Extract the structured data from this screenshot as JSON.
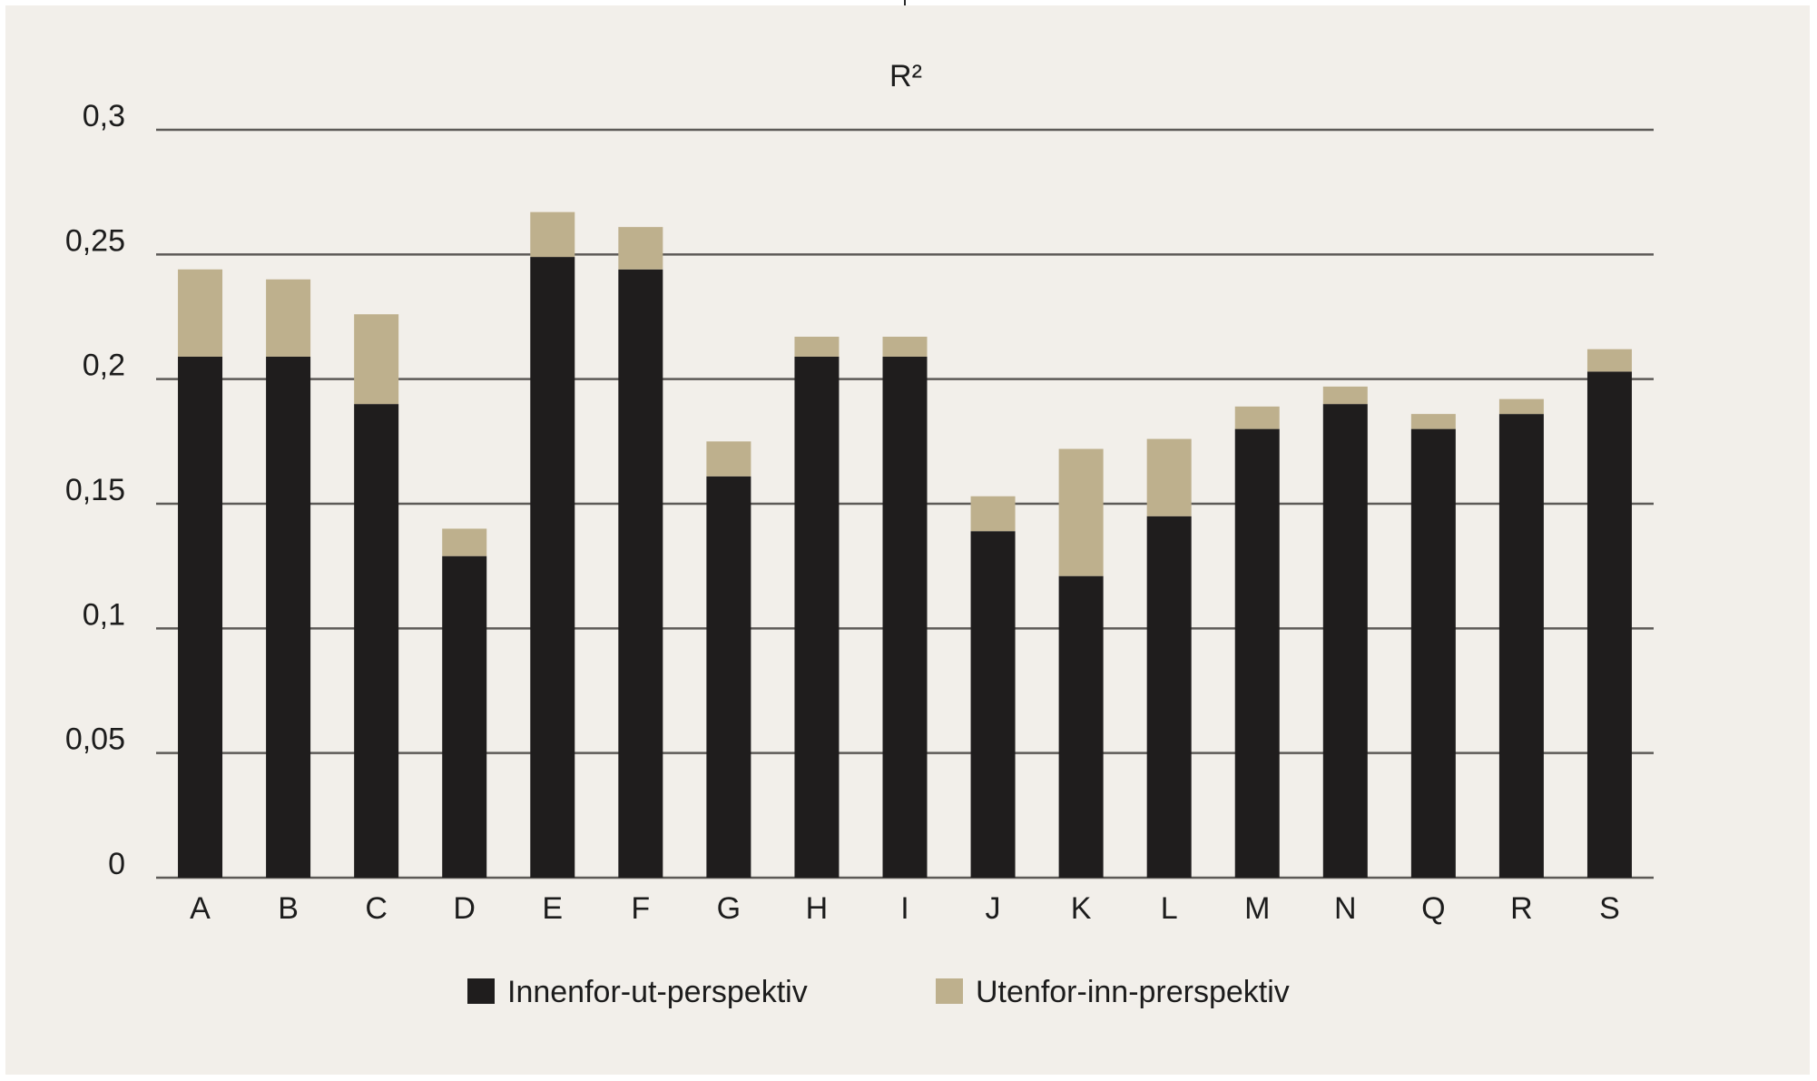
{
  "chart_data": {
    "type": "bar",
    "stacked": true,
    "title": "R²",
    "xlabel": "",
    "ylabel": "",
    "ylim": [
      0,
      0.3
    ],
    "y_ticks": [
      "0",
      "0,05",
      "0,1",
      "0,15",
      "0,2",
      "0,25",
      "0,3"
    ],
    "grid": true,
    "legend_position": "bottom-center",
    "categories": [
      "A",
      "B",
      "C",
      "D",
      "E",
      "F",
      "G",
      "H",
      "I",
      "J",
      "K",
      "L",
      "M",
      "N",
      "Q",
      "R",
      "S"
    ],
    "series": [
      {
        "name": "Innenfor-ut-perspektiv",
        "color": "#1f1d1d",
        "values": [
          0.209,
          0.209,
          0.19,
          0.129,
          0.249,
          0.244,
          0.161,
          0.209,
          0.209,
          0.139,
          0.121,
          0.145,
          0.18,
          0.19,
          0.18,
          0.186,
          0.203
        ]
      },
      {
        "name": "Utenfor-inn-prerspektiv",
        "color": "#beb08d",
        "values": [
          0.035,
          0.031,
          0.036,
          0.011,
          0.018,
          0.017,
          0.014,
          0.008,
          0.008,
          0.014,
          0.051,
          0.031,
          0.009,
          0.007,
          0.006,
          0.006,
          0.009
        ]
      }
    ]
  }
}
